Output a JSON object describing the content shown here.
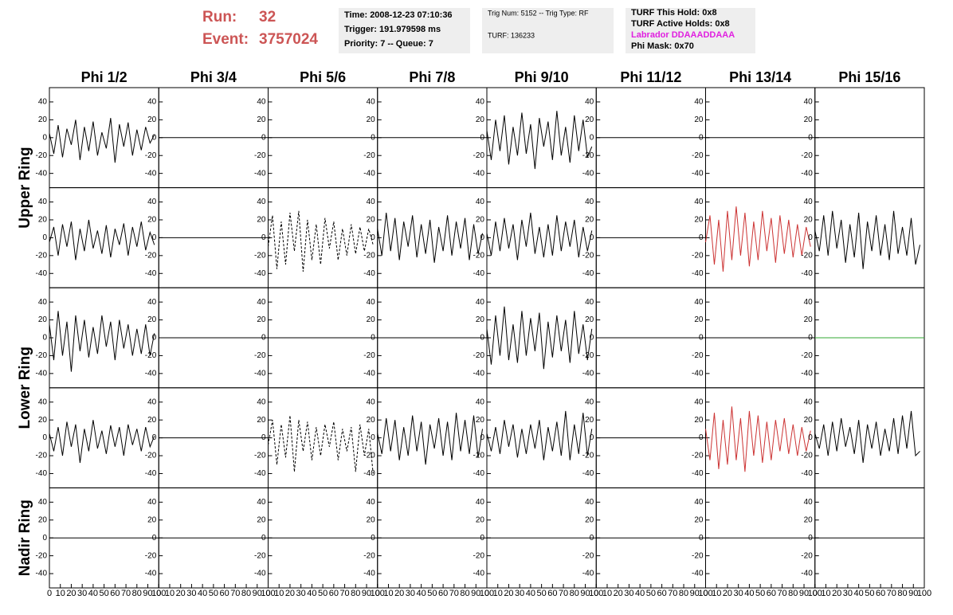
{
  "header": {
    "run_label": "Run:",
    "run": "32",
    "event_label": "Event:",
    "event": "3757024",
    "time": "Time: 2008-12-23 07:10:36",
    "trigger": "Trigger: 191.979598 ms",
    "priority": "Priority: 7 -- Queue: 7",
    "trig_num": "Trig Num: 5152 -- Trig Type: RF",
    "turf": "TURF: 136233",
    "turf_this_hold": "TURF This Hold: 0x8",
    "turf_active_holds": "TURF Active Holds: 0x8",
    "labrador": "Labrador DDAAADDAAA",
    "phi_mask": "Phi Mask: 0x70"
  },
  "chart_data": {
    "type": "line",
    "columns": [
      "Phi 1/2",
      "Phi 3/4",
      "Phi 5/6",
      "Phi 7/8",
      "Phi 9/10",
      "Phi 11/12",
      "Phi 13/14",
      "Phi 15/16"
    ],
    "x": [
      0,
      4,
      8,
      12,
      16,
      20,
      24,
      28,
      32,
      36,
      40,
      44,
      48,
      52,
      56,
      60,
      64,
      68,
      72,
      76,
      80,
      84,
      88,
      92,
      96
    ],
    "xlim": [
      0,
      100
    ],
    "xticks": [
      0,
      10,
      20,
      30,
      40,
      50,
      60,
      70,
      80,
      90,
      100
    ],
    "ylim": [
      -56,
      56
    ],
    "yticks": [
      -40,
      -20,
      0,
      20,
      40
    ],
    "rings": [
      {
        "label": "Upper Ring",
        "rows": [
          [
            {
              "color": "#000000",
              "values": [
                5,
                -18,
                14,
                -22,
                10,
                -8,
                20,
                -25,
                12,
                -15,
                18,
                -20,
                6,
                -12,
                22,
                -28,
                15,
                -10,
                17,
                -20,
                9,
                -14,
                12,
                -6,
                3
              ]
            },
            {
              "color": "#000000"
            },
            {
              "color": "#000000"
            },
            {
              "color": "#000000"
            },
            {
              "color": "#000000",
              "values": [
                8,
                -25,
                20,
                -15,
                25,
                -30,
                12,
                -20,
                28,
                -18,
                15,
                -35,
                22,
                -10,
                18,
                -25,
                30,
                -20,
                12,
                -28,
                25,
                -15,
                20,
                -22,
                -10
              ]
            },
            {
              "color": "#000000"
            },
            {
              "color": "#000000"
            },
            {
              "color": "#000000"
            }
          ],
          [
            {
              "color": "#000000",
              "values": [
                -5,
                12,
                -20,
                15,
                -10,
                18,
                -25,
                10,
                -15,
                20,
                -12,
                8,
                -18,
                14,
                -22,
                10,
                -8,
                16,
                -20,
                12,
                -10,
                18,
                -14,
                6,
                -8
              ]
            },
            {
              "color": "#000000"
            },
            {
              "color": "#000000",
              "dashed": true,
              "values": [
                -10,
                25,
                -35,
                18,
                -30,
                28,
                -15,
                30,
                -38,
                20,
                -25,
                15,
                -30,
                22,
                -12,
                18,
                -25,
                10,
                -20,
                15,
                -18,
                12,
                -15,
                10,
                -8
              ]
            },
            {
              "color": "#000000",
              "values": [
                10,
                -20,
                28,
                -15,
                22,
                -25,
                18,
                -10,
                25,
                -22,
                15,
                -18,
                20,
                -28,
                12,
                -15,
                25,
                -20,
                18,
                -12,
                22,
                -25,
                15,
                -18,
                5
              ]
            },
            {
              "color": "#000000",
              "values": [
                5,
                -20,
                18,
                -15,
                22,
                -12,
                15,
                -25,
                20,
                -10,
                28,
                -18,
                12,
                -22,
                15,
                -20,
                25,
                -15,
                18,
                -10,
                20,
                -22,
                12,
                -15,
                8
              ]
            },
            {
              "color": "#000000"
            },
            {
              "color": "#cc3333",
              "values": [
                -5,
                25,
                -30,
                20,
                -38,
                30,
                -25,
                35,
                -20,
                28,
                -32,
                18,
                -25,
                30,
                -15,
                22,
                -28,
                25,
                -18,
                20,
                -22,
                15,
                -20,
                12,
                -10
              ]
            },
            {
              "color": "#000000",
              "values": [
                8,
                -15,
                25,
                -20,
                30,
                -12,
                20,
                -28,
                15,
                -22,
                28,
                -35,
                18,
                -15,
                25,
                -20,
                15,
                -25,
                30,
                -18,
                12,
                -20,
                22,
                -30,
                -8
              ]
            }
          ]
        ]
      },
      {
        "label": "Lower Ring",
        "rows": [
          [
            {
              "color": "#000000",
              "values": [
                15,
                -25,
                30,
                -20,
                18,
                -38,
                25,
                -15,
                20,
                -22,
                12,
                -18,
                25,
                -10,
                18,
                -25,
                20,
                -12,
                15,
                -20,
                10,
                -18,
                15,
                -20,
                5
              ]
            },
            {
              "color": "#000000"
            },
            {
              "color": "#000000"
            },
            {
              "color": "#000000"
            },
            {
              "color": "#000000",
              "values": [
                10,
                -30,
                25,
                -20,
                35,
                -25,
                15,
                -28,
                30,
                -20,
                22,
                -15,
                28,
                -35,
                18,
                -22,
                25,
                -15,
                20,
                -28,
                30,
                -18,
                15,
                -25,
                10
              ]
            },
            {
              "color": "#000000"
            },
            {
              "color": "#000000"
            },
            {
              "color": "#33aa33"
            }
          ],
          [
            {
              "color": "#000000",
              "values": [
                5,
                -15,
                12,
                -20,
                18,
                -10,
                15,
                -28,
                10,
                -15,
                20,
                -12,
                8,
                -18,
                14,
                -10,
                12,
                -20,
                15,
                -8,
                10,
                -15,
                12,
                -10,
                2
              ]
            },
            {
              "color": "#000000"
            },
            {
              "color": "#000000",
              "dashed": true,
              "values": [
                -8,
                20,
                -30,
                15,
                -22,
                25,
                -38,
                20,
                -15,
                18,
                -25,
                12,
                -20,
                15,
                -10,
                18,
                -25,
                10,
                -15,
                12,
                -38,
                15,
                -20,
                10,
                -40
              ]
            },
            {
              "color": "#000000",
              "values": [
                5,
                -18,
                22,
                -15,
                20,
                -25,
                12,
                -20,
                25,
                -15,
                18,
                -30,
                15,
                -12,
                22,
                -20,
                18,
                -25,
                28,
                -15,
                20,
                -18,
                25,
                -22,
                10
              ]
            },
            {
              "color": "#000000",
              "values": [
                5,
                -15,
                12,
                -18,
                20,
                -10,
                15,
                -22,
                10,
                -18,
                15,
                -12,
                20,
                -25,
                12,
                -15,
                18,
                -20,
                30,
                -25,
                15,
                -18,
                28,
                -20,
                10
              ]
            },
            {
              "color": "#000000"
            },
            {
              "color": "#cc3333",
              "values": [
                10,
                -25,
                28,
                -35,
                20,
                -30,
                35,
                -25,
                22,
                -38,
                30,
                -20,
                25,
                -28,
                18,
                -25,
                20,
                -15,
                22,
                -18,
                15,
                -20,
                12,
                -15,
                8
              ]
            },
            {
              "color": "#000000",
              "values": [
                5,
                -12,
                15,
                -20,
                18,
                -15,
                22,
                -10,
                12,
                -18,
                20,
                -28,
                15,
                -12,
                18,
                -20,
                10,
                -15,
                22,
                -18,
                25,
                -12,
                30,
                -20,
                -15
              ]
            }
          ]
        ]
      },
      {
        "label": "Nadir Ring",
        "rows": [
          [
            {
              "color": "#000000"
            },
            {
              "color": "#000000"
            },
            {
              "color": "#000000"
            },
            {
              "color": "#000000"
            },
            {
              "color": "#000000"
            },
            {
              "color": "#000000"
            },
            {
              "color": "#000000"
            },
            {
              "color": "#000000"
            }
          ]
        ]
      }
    ]
  }
}
